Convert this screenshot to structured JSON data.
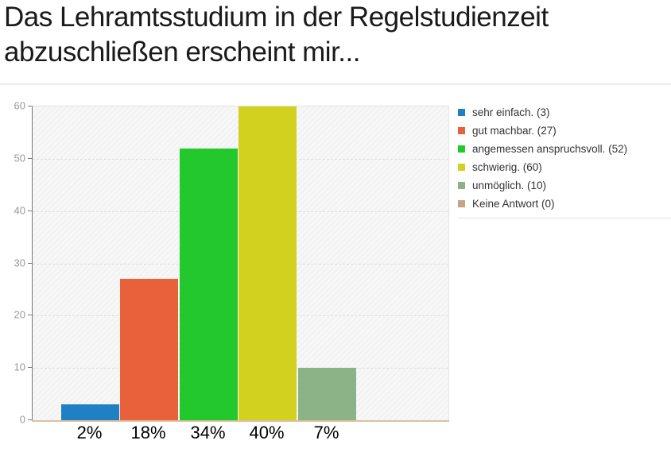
{
  "page": {
    "title_line1": "Das Lehramtsstudium in der Regelstudienzeit",
    "title_line2": "abzuschließen erscheint mir..."
  },
  "chart_data": {
    "type": "bar",
    "title": "Das Lehramtsstudium in der Regelstudienzeit abzuschließen erscheint mir...",
    "categories": [
      "sehr einfach.",
      "gut machbar.",
      "angemessen anspruchsvoll.",
      "schwierig.",
      "unmöglich.",
      "Keine Antwort"
    ],
    "values": [
      3,
      27,
      52,
      60,
      10,
      0
    ],
    "percent_labels": [
      "2%",
      "18%",
      "34%",
      "40%",
      "7%",
      ""
    ],
    "bar_colors": [
      "#1f80c4",
      "#e8613b",
      "#23c82c",
      "#d3d11f",
      "#8bb387",
      "#c9a383"
    ],
    "legend": [
      "sehr einfach. (3)",
      "gut machbar. (27)",
      "angemessen anspruchsvoll. (52)",
      "schwierig. (60)",
      "unmöglich. (10)",
      "Keine Antwort (0)"
    ],
    "legend_position": "right",
    "xlabel": "",
    "ylabel": "",
    "ylim": [
      0,
      60
    ],
    "yticks": [
      0,
      10,
      20,
      30,
      40,
      50,
      60
    ],
    "grid": true
  }
}
